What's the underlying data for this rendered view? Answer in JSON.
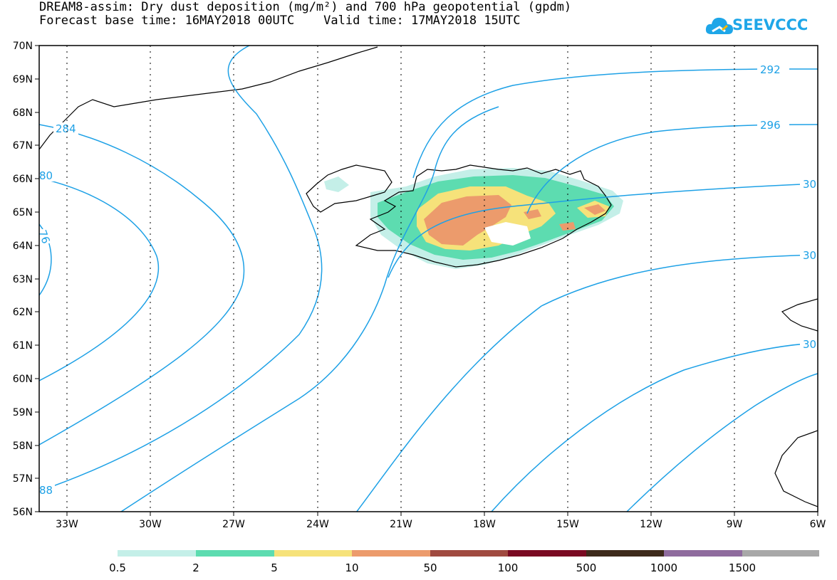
{
  "title_line1": "DREAM8-assim: Dry dust deposition (mg/m²) and 700 hPa geopotential (gpdm)",
  "title_line2": "Forecast base time: 16MAY2018 00UTC    Valid time: 17MAY2018 15UTC",
  "logo": {
    "text": "SEEVCCC",
    "icon": "cloud-icon",
    "color": "#1ea6e8"
  },
  "axes": {
    "lat_labels": [
      "70N",
      "69N",
      "68N",
      "67N",
      "66N",
      "65N",
      "64N",
      "63N",
      "62N",
      "61N",
      "60N",
      "59N",
      "58N",
      "57N",
      "56N"
    ],
    "lon_labels": [
      "33W",
      "30W",
      "27W",
      "24W",
      "21W",
      "18W",
      "15W",
      "12W",
      "9W",
      "6W"
    ]
  },
  "contour_labels": [
    "292",
    "296",
    "30",
    "30",
    "30",
    "284",
    "80",
    "76",
    "88"
  ],
  "colorbar": {
    "colors": [
      "#c4efe8",
      "#5ddcb0",
      "#f6e27a",
      "#ec9b6c",
      "#a04a40",
      "#7a0a22",
      "#3d2a1b",
      "#8f6c9e",
      "#a8a8a8"
    ],
    "labels": [
      "0.5",
      "2",
      "5",
      "10",
      "50",
      "100",
      "500",
      "1000",
      "1500"
    ]
  },
  "contour_color": "#1ea1e6"
}
